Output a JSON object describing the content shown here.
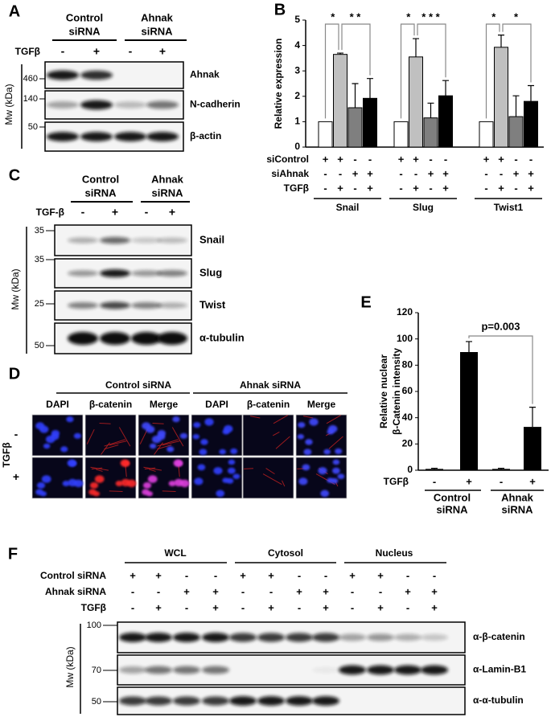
{
  "panel_a": {
    "letter": "A",
    "groups": [
      [
        "Control",
        "siRNA"
      ],
      [
        "Ahnak",
        "siRNA"
      ]
    ],
    "treatment": "TGFβ",
    "signs": [
      "-",
      "+",
      "-",
      "+"
    ],
    "mw_label": "Mw (kDa)",
    "markers": [
      460,
      140,
      50
    ],
    "proteins": [
      "Ahnak",
      "N-cadherin",
      "β-actin"
    ]
  },
  "panel_c": {
    "letter": "C",
    "groups": [
      [
        "Control",
        "siRNA"
      ],
      [
        "Ahnak",
        "siRNA"
      ]
    ],
    "treatment": "TGF-β",
    "signs": [
      "-",
      "+",
      "-",
      "+"
    ],
    "mw_label": "Mw (kDa)",
    "markers": [
      35,
      35,
      25,
      50
    ],
    "proteins": [
      "Snail",
      "Slug",
      "Twist",
      "α-tubulin"
    ]
  },
  "panel_d": {
    "letter": "D",
    "groups": [
      "Control siRNA",
      "Ahnak siRNA"
    ],
    "channels": [
      "DAPI",
      "β-catenin",
      "Merge"
    ],
    "treatment": "TGFβ",
    "rows": [
      "-",
      "+"
    ]
  },
  "panel_f": {
    "letter": "F",
    "fractions": [
      "WCL",
      "Cytosol",
      "Nucleus"
    ],
    "conditions": [
      {
        "label": "Control siRNA",
        "signs": [
          "+",
          "+",
          "-",
          "-",
          "+",
          "+",
          "-",
          "-",
          "+",
          "+",
          "-",
          "-"
        ]
      },
      {
        "label": "Ahnak siRNA",
        "signs": [
          "-",
          "-",
          "+",
          "+",
          "-",
          "-",
          "+",
          "+",
          "-",
          "-",
          "+",
          "+"
        ]
      },
      {
        "label": "TGFβ",
        "signs": [
          "-",
          "+",
          "-",
          "+",
          "-",
          "+",
          "-",
          "+",
          "-",
          "+",
          "-",
          "+"
        ]
      }
    ],
    "mw_label": "Mw (kDa)",
    "markers": [
      100,
      70,
      50
    ],
    "proteins": [
      "α-β-catenin",
      "α-Lamin-B1",
      "α-α-tubulin"
    ]
  },
  "chart_data": [
    {
      "type": "bar",
      "letter": "B",
      "y_label": "Relative expression",
      "ylim": [
        0,
        5
      ],
      "yticks": [
        0,
        1,
        2,
        3,
        4,
        5
      ],
      "categories": [
        "Snail",
        "Slug",
        "Twist1"
      ],
      "series": [
        {
          "color": "#ffffff",
          "values": [
            1,
            1,
            1
          ],
          "errors": [
            0,
            0,
            0
          ]
        },
        {
          "color": "#c0c0c0",
          "values": [
            3.65,
            3.55,
            3.93
          ],
          "errors": [
            0.05,
            0.72,
            0.48
          ]
        },
        {
          "color": "#7f7f7f",
          "values": [
            1.55,
            1.15,
            1.2
          ],
          "errors": [
            0.95,
            0.58,
            0.82
          ]
        },
        {
          "color": "#000000",
          "values": [
            1.92,
            2.02,
            1.8
          ],
          "errors": [
            0.78,
            0.6,
            0.62
          ]
        }
      ],
      "condition_rows": [
        {
          "label": "siControl",
          "signs": [
            "+",
            "+",
            "-",
            "-"
          ]
        },
        {
          "label": "siAhnak",
          "signs": [
            "-",
            "-",
            "+",
            "+"
          ]
        },
        {
          "label": "TGFβ",
          "signs": [
            "-",
            "+",
            "-",
            "+"
          ]
        }
      ],
      "significance": [
        [
          "*",
          "* *"
        ],
        [
          "*",
          "* * *"
        ],
        [
          "*",
          "*"
        ]
      ]
    },
    {
      "type": "bar",
      "letter": "E",
      "y_label": [
        "Relative nuclear",
        "β-Catenin intensity"
      ],
      "ylim": [
        0,
        120
      ],
      "yticks": [
        0,
        20,
        40,
        60,
        80,
        100,
        120
      ],
      "values": [
        1,
        90,
        1,
        33
      ],
      "errors": [
        0.5,
        8,
        0.5,
        15
      ],
      "color": "#000000",
      "treatment": {
        "label": "TGFβ",
        "signs": [
          "-",
          "+",
          "-",
          "+"
        ]
      },
      "groups": [
        [
          "Control",
          "siRNA"
        ],
        [
          "Ahnak",
          "siRNA"
        ]
      ],
      "annotation": "p=0.003"
    }
  ]
}
